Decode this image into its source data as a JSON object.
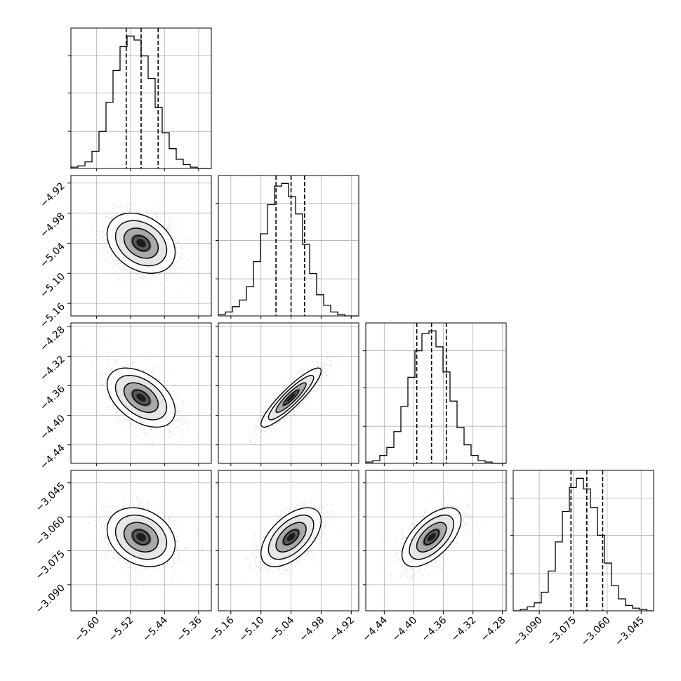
{
  "chart_data": {
    "type": "corner",
    "parameters": 4,
    "quantiles": [
      0.16,
      0.5,
      0.84
    ],
    "contour_levels": 3,
    "grid": true,
    "axes": [
      {
        "range": [
          -5.66,
          -5.33
        ],
        "ticks": [
          -5.6,
          -5.52,
          -5.44,
          -5.36
        ],
        "tick_labels": [
          "−5.60",
          "−5.52",
          "−5.44",
          "−5.36"
        ],
        "mean": -5.495,
        "sigma": 0.04,
        "q16": -5.53,
        "q50": -5.495,
        "q84": -5.455
      },
      {
        "range": [
          -5.185,
          -4.905
        ],
        "ticks": [
          -5.16,
          -5.1,
          -5.04,
          -4.98,
          -4.92
        ],
        "tick_labels": [
          "−5.16",
          "−5.10",
          "−5.04",
          "−4.98",
          "−4.92"
        ],
        "mean": -5.04,
        "sigma": 0.03,
        "q16": -5.07,
        "q50": -5.04,
        "q84": -5.013
      },
      {
        "range": [
          -4.465,
          -4.275
        ],
        "ticks": [
          -4.44,
          -4.4,
          -4.36,
          -4.32,
          -4.28
        ],
        "tick_labels": [
          "−4.44",
          "−4.40",
          "−4.36",
          "−4.32",
          "−4.28"
        ],
        "mean": -4.376,
        "sigma": 0.02,
        "q16": -4.396,
        "q50": -4.376,
        "q84": -4.356
      },
      {
        "range": [
          -3.1015,
          -3.0395
        ],
        "ticks": [
          -3.09,
          -3.075,
          -3.06,
          -3.045
        ],
        "tick_labels": [
          "−3.090",
          "−3.075",
          "−3.060",
          "−3.045"
        ],
        "mean": -3.069,
        "sigma": 0.0065,
        "q16": -3.076,
        "q50": -3.069,
        "q84": -3.062
      }
    ],
    "histograms": [
      {
        "param": 0,
        "bin_edges": [
          -5.66,
          -5.6435,
          -5.627,
          -5.6105,
          -5.594,
          -5.5775,
          -5.561,
          -5.5445,
          -5.528,
          -5.5115,
          -5.495,
          -5.4785,
          -5.462,
          -5.4455,
          -5.429,
          -5.4125,
          -5.396,
          -5.3795,
          -5.363,
          -5.3465,
          -5.33
        ],
        "counts": [
          0.01,
          0.02,
          0.05,
          0.13,
          0.28,
          0.5,
          0.74,
          0.92,
          1.0,
          0.97,
          0.85,
          0.68,
          0.46,
          0.27,
          0.15,
          0.07,
          0.03,
          0.01,
          0.0,
          0.0
        ]
      },
      {
        "param": 1,
        "bin_edges": [
          -5.185,
          -5.171,
          -5.157,
          -5.143,
          -5.129,
          -5.115,
          -5.101,
          -5.087,
          -5.073,
          -5.059,
          -5.045,
          -5.031,
          -5.017,
          -5.003,
          -4.989,
          -4.975,
          -4.961,
          -4.947,
          -4.933,
          -4.919,
          -4.905
        ],
        "counts": [
          0.01,
          0.03,
          0.07,
          0.12,
          0.22,
          0.41,
          0.62,
          0.84,
          0.98,
          1.0,
          0.9,
          0.77,
          0.54,
          0.32,
          0.16,
          0.08,
          0.03,
          0.01,
          0.0,
          0.0
        ]
      },
      {
        "param": 2,
        "bin_edges": [
          -4.465,
          -4.4555,
          -4.446,
          -4.4365,
          -4.427,
          -4.4175,
          -4.408,
          -4.3985,
          -4.389,
          -4.3795,
          -4.37,
          -4.3605,
          -4.351,
          -4.3415,
          -4.332,
          -4.3225,
          -4.313,
          -4.3035,
          -4.294,
          -4.2845,
          -4.275
        ],
        "counts": [
          0.01,
          0.02,
          0.06,
          0.12,
          0.24,
          0.43,
          0.65,
          0.85,
          0.98,
          1.0,
          0.88,
          0.69,
          0.47,
          0.27,
          0.14,
          0.06,
          0.02,
          0.01,
          0.0,
          0.0
        ]
      },
      {
        "param": 3,
        "bin_edges": [
          -3.1015,
          -3.0984,
          -3.0953,
          -3.0922,
          -3.0891,
          -3.086,
          -3.0829,
          -3.0798,
          -3.0767,
          -3.0736,
          -3.0705,
          -3.0674,
          -3.0643,
          -3.0612,
          -3.0581,
          -3.055,
          -3.0519,
          -3.0488,
          -3.0457,
          -3.0426,
          -3.0395
        ],
        "counts": [
          0.0,
          0.01,
          0.03,
          0.06,
          0.14,
          0.3,
          0.52,
          0.75,
          0.93,
          1.0,
          0.92,
          0.78,
          0.57,
          0.36,
          0.19,
          0.09,
          0.04,
          0.02,
          0.01,
          0.0
        ]
      }
    ],
    "pairs": [
      {
        "x": 0,
        "y": 1,
        "correlation": -0.3
      },
      {
        "x": 0,
        "y": 2,
        "correlation": -0.45
      },
      {
        "x": 1,
        "y": 2,
        "correlation": 0.9
      },
      {
        "x": 0,
        "y": 3,
        "correlation": -0.25
      },
      {
        "x": 1,
        "y": 3,
        "correlation": 0.55
      },
      {
        "x": 2,
        "y": 3,
        "correlation": 0.6
      }
    ]
  }
}
